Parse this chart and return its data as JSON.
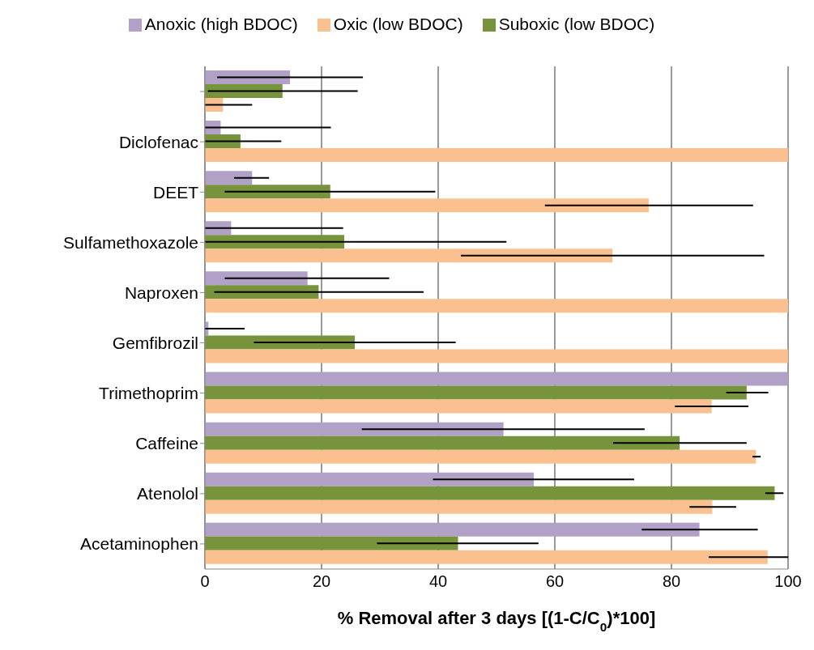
{
  "chart_data": {
    "type": "bar",
    "orientation": "horizontal",
    "xlabel": "% Removal after 3 days [(1-C/C$_{0}$)*100]",
    "categories": [
      null,
      "Diclofenac",
      "DEET",
      "Sulfamethoxazole",
      "Naproxen",
      "Gemfibrozil",
      "Trimethoprim",
      "Caffeine",
      "Atenolol",
      "Acetaminophen"
    ],
    "series": [
      {
        "name": "Anoxic (high BDOC)",
        "color": "#b2a1c7",
        "values": [
          14.6,
          2.7,
          8.1,
          4.5,
          17.6,
          0.6,
          100,
          51.2,
          56.4,
          84.8
        ],
        "errors": [
          [
            2.1,
            27.1
          ],
          [
            0,
            21.6
          ],
          [
            5.0,
            11.0
          ],
          [
            0,
            23.7
          ],
          [
            3.4,
            31.6
          ],
          [
            0,
            6.8
          ],
          null,
          [
            26.9,
            75.4
          ],
          [
            39.1,
            73.6
          ],
          [
            74.9,
            94.8
          ]
        ]
      },
      {
        "name": "Suboxic (low BDOC)",
        "color": "#77933c",
        "values": [
          13.3,
          6.1,
          21.5,
          23.9,
          19.5,
          25.7,
          92.9,
          81.4,
          97.7,
          43.4
        ],
        "errors": [
          [
            0.5,
            26.2
          ],
          [
            0,
            13.1
          ],
          [
            3.4,
            39.5
          ],
          [
            0,
            51.7
          ],
          [
            1.6,
            37.5
          ],
          [
            8.4,
            43.0
          ],
          [
            89.4,
            96.6
          ],
          [
            70.0,
            92.9
          ],
          [
            96.1,
            99.2
          ],
          [
            29.5,
            57.2
          ]
        ]
      },
      {
        "name": "Oxic (low BDOC)",
        "color": "#fac090",
        "values": [
          3.1,
          100,
          76.1,
          69.9,
          100,
          100,
          86.9,
          94.5,
          87.0,
          96.5
        ],
        "errors": [
          [
            0,
            8.1
          ],
          null,
          [
            58.3,
            94.0
          ],
          [
            43.9,
            95.9
          ],
          null,
          null,
          [
            80.6,
            93.2
          ],
          [
            93.9,
            95.3
          ],
          [
            83.1,
            91.1
          ],
          [
            86.4,
            100
          ]
        ]
      }
    ],
    "xlim": [
      0,
      100
    ],
    "xticks": [
      0,
      20,
      40,
      60,
      80,
      100
    ],
    "grid": "x",
    "legend": "top"
  }
}
